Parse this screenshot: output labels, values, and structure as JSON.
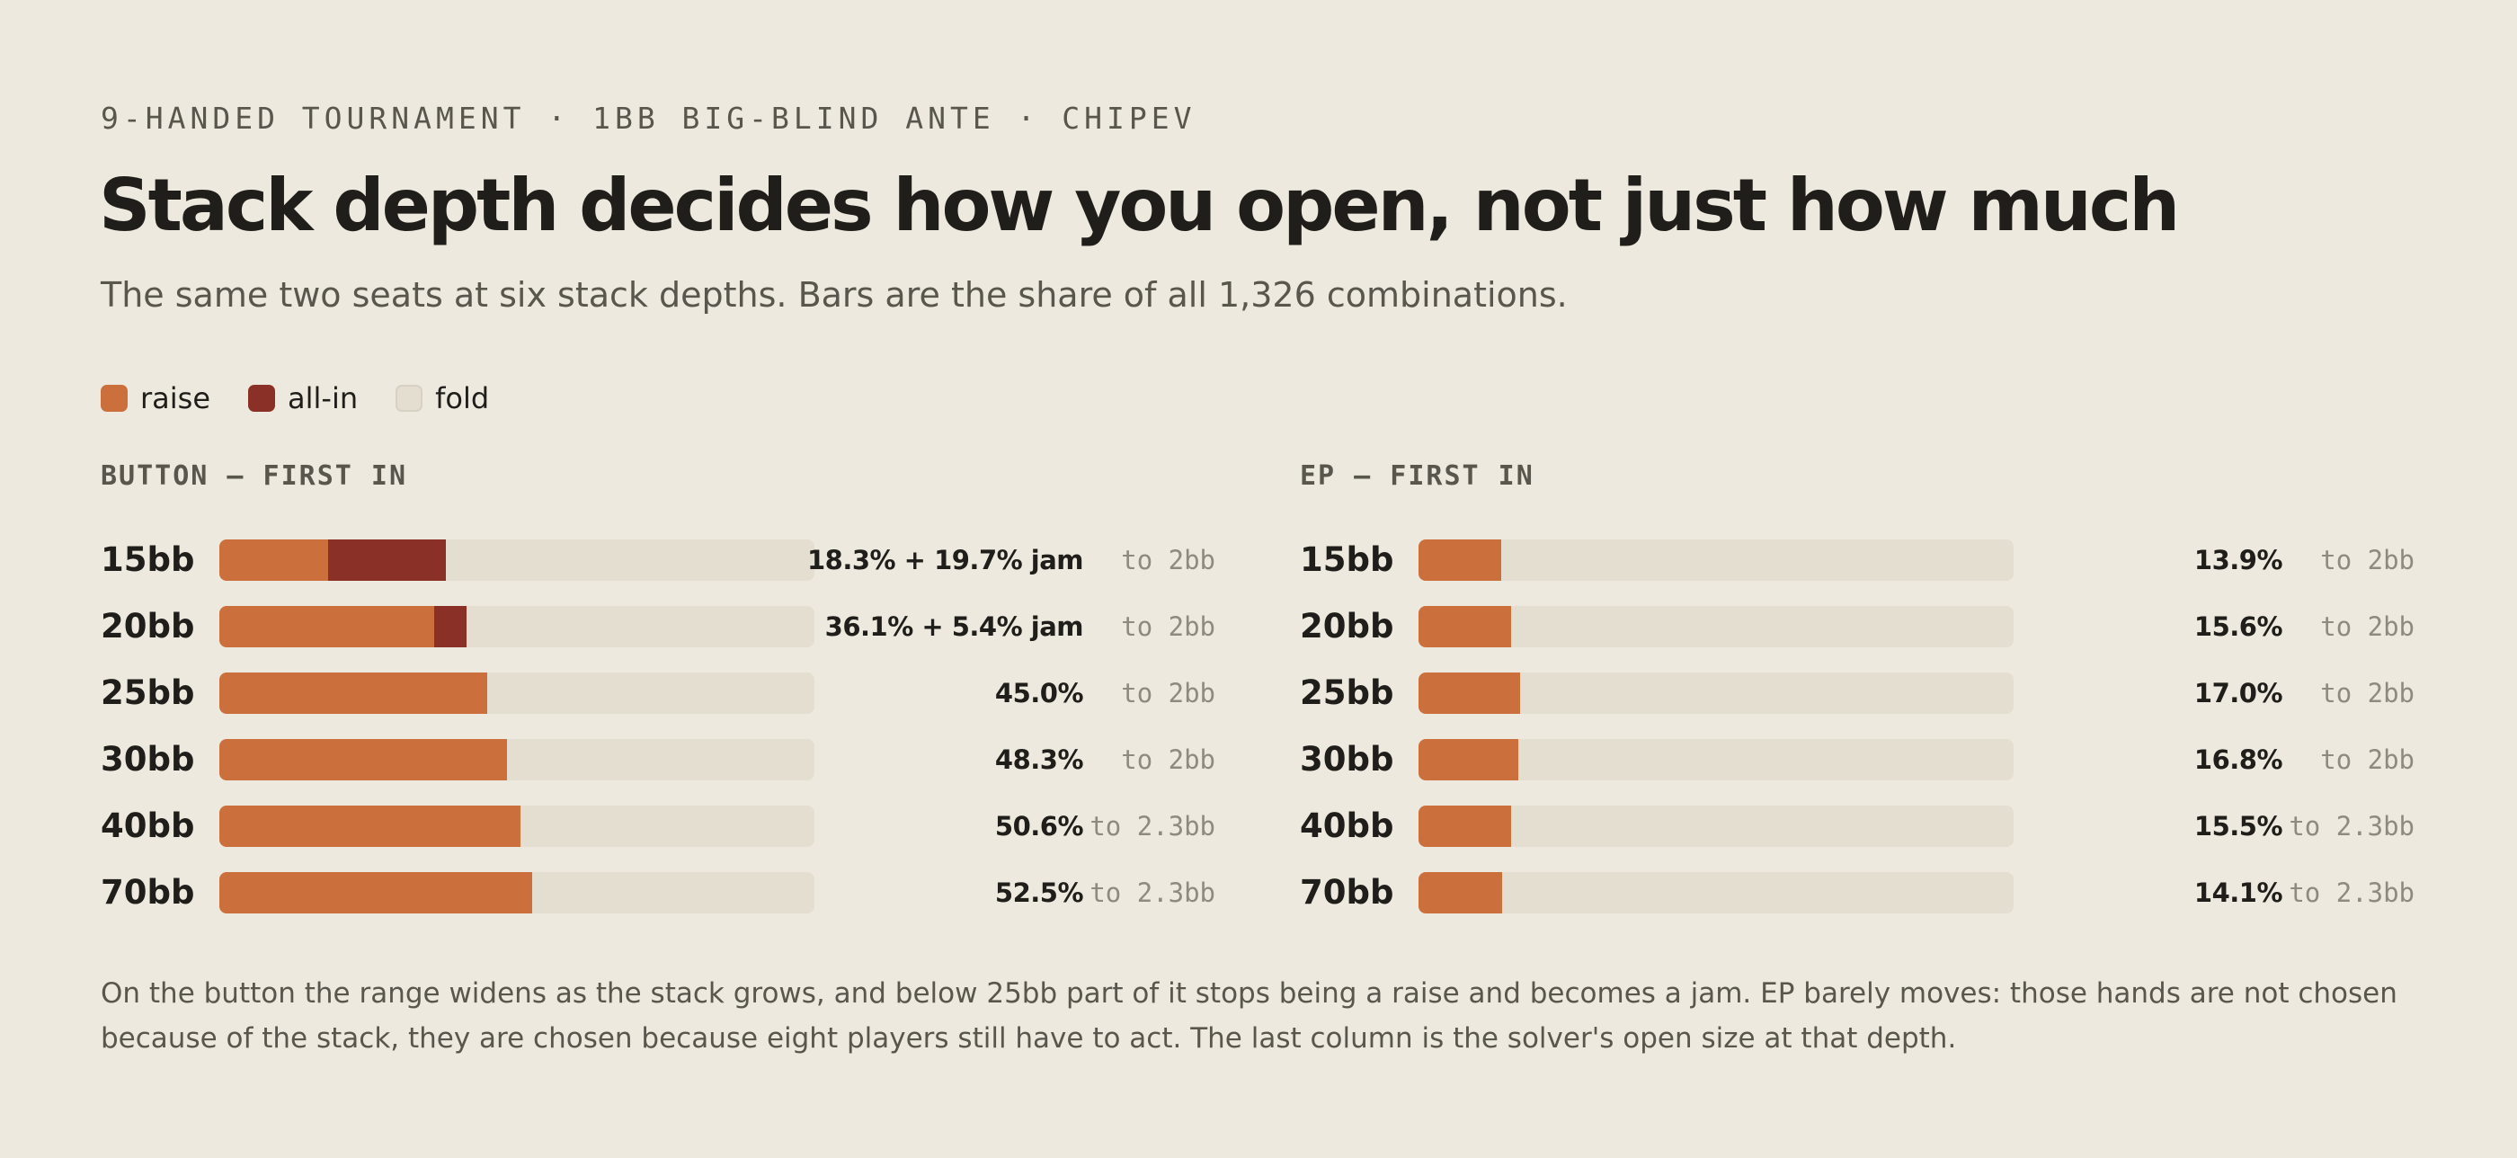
{
  "eyebrow": "9-HANDED TOURNAMENT · 1BB BIG-BLIND ANTE · CHIPEV",
  "title": "Stack depth decides how you open, not just how much",
  "subtitle": "The same two seats at six stack depths. Bars are the share of all 1,326 combinations.",
  "legend": [
    {
      "label": "raise",
      "color": "#CB6F3C"
    },
    {
      "label": "all-in",
      "color": "#8A3026"
    },
    {
      "label": "fold",
      "color": "#E3DECF"
    }
  ],
  "colors": {
    "raise": "#CB6F3C",
    "jam": "#8A3026",
    "fold": "#E3DECF"
  },
  "chart_data": [
    {
      "type": "bar",
      "title": "BUTTON — FIRST IN",
      "categories": [
        "15bb",
        "20bb",
        "25bb",
        "30bb",
        "40bb",
        "70bb"
      ],
      "series": [
        {
          "name": "raise",
          "values": [
            18.3,
            36.1,
            45.0,
            48.3,
            50.6,
            52.5
          ]
        },
        {
          "name": "all-in",
          "values": [
            19.7,
            5.4,
            0,
            0,
            0,
            0
          ]
        }
      ],
      "value_labels": [
        "18.3% + 19.7% jam",
        "36.1% + 5.4% jam",
        "45.0%",
        "48.3%",
        "50.6%",
        "52.5%"
      ],
      "open_sizes": [
        "to 2bb",
        "to 2bb",
        "to 2bb",
        "to 2bb",
        "to 2.3bb",
        "to 2.3bb"
      ],
      "xlim": [
        0,
        100
      ],
      "stacked": true,
      "orientation": "horizontal"
    },
    {
      "type": "bar",
      "title": "EP — FIRST IN",
      "categories": [
        "15bb",
        "20bb",
        "25bb",
        "30bb",
        "40bb",
        "70bb"
      ],
      "series": [
        {
          "name": "raise",
          "values": [
            13.9,
            15.6,
            17.0,
            16.8,
            15.5,
            14.1
          ]
        }
      ],
      "value_labels": [
        "13.9%",
        "15.6%",
        "17.0%",
        "16.8%",
        "15.5%",
        "14.1%"
      ],
      "open_sizes": [
        "to 2bb",
        "to 2bb",
        "to 2bb",
        "to 2bb",
        "to 2.3bb",
        "to 2.3bb"
      ],
      "xlim": [
        0,
        100
      ],
      "stacked": true,
      "orientation": "horizontal"
    }
  ],
  "note": "On the button the range widens as the stack grows, and below 25bb part of it stops being a raise and becomes a jam. EP barely moves: those hands are not chosen because of the stack, they are chosen because eight players still have to act. The last column is the solver's open size at that depth."
}
